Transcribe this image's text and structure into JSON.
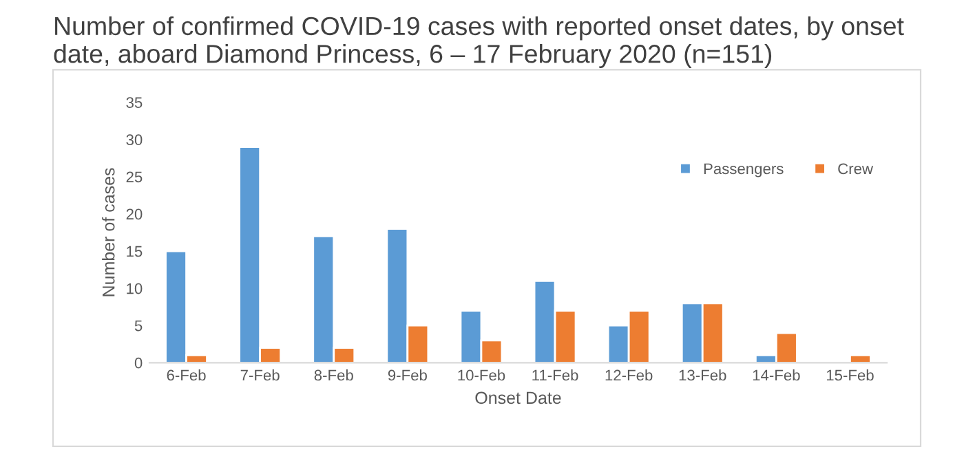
{
  "chart_data": {
    "type": "bar",
    "title": "Number of confirmed COVID-19 cases with reported onset dates, by onset date, aboard Diamond Princess, 6 – 17 February 2020 (n=151)",
    "xlabel": "Onset Date",
    "ylabel": "Number of cases",
    "categories": [
      "6-Feb",
      "7-Feb",
      "8-Feb",
      "9-Feb",
      "10-Feb",
      "11-Feb",
      "12-Feb",
      "13-Feb",
      "14-Feb",
      "15-Feb"
    ],
    "series": [
      {
        "name": "Passengers",
        "color": "#5b9bd5",
        "values": [
          15,
          29,
          17,
          18,
          7,
          11,
          5,
          8,
          1,
          null
        ]
      },
      {
        "name": "Crew",
        "color": "#ed7d31",
        "values": [
          1,
          2,
          2,
          5,
          3,
          7,
          7,
          8,
          4,
          1
        ]
      }
    ],
    "ylim": [
      0,
      35
    ],
    "yticks": [
      0,
      5,
      10,
      15,
      20,
      25,
      30,
      35
    ],
    "legend": "top right",
    "grid": false
  }
}
